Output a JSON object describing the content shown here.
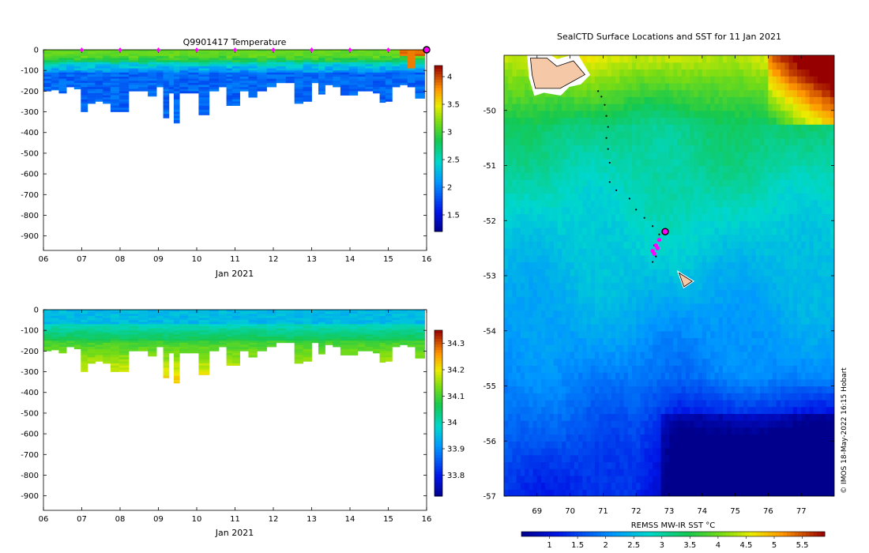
{
  "chart_data": [
    {
      "type": "heatmap",
      "id": "temperature-section",
      "title": "Q9901417  Temperature",
      "xlabel": "Jan 2021",
      "ylabel": "",
      "xlim": [
        6,
        16
      ],
      "ylim": [
        -970,
        0
      ],
      "xticks": [
        6,
        7,
        8,
        9,
        10,
        11,
        12,
        13,
        14,
        15,
        16
      ],
      "xtick_labels": [
        "06",
        "07",
        "08",
        "09",
        "10",
        "11",
        "12",
        "13",
        "14",
        "15",
        "16"
      ],
      "yticks": [
        0,
        -100,
        -200,
        -300,
        -400,
        -500,
        -600,
        -700,
        -800,
        -900
      ],
      "markers": {
        "color": "#ff00ff",
        "x": [
          7,
          8,
          9,
          10,
          11,
          12,
          13,
          14,
          15,
          16
        ]
      },
      "profile_depths": [
        {
          "x": 6.1,
          "depth": -200
        },
        {
          "x": 6.3,
          "depth": -195
        },
        {
          "x": 6.5,
          "depth": -210
        },
        {
          "x": 6.7,
          "depth": -180
        },
        {
          "x": 6.9,
          "depth": -190
        },
        {
          "x": 7.05,
          "depth": -300
        },
        {
          "x": 7.25,
          "depth": -260
        },
        {
          "x": 7.45,
          "depth": -250
        },
        {
          "x": 7.65,
          "depth": -260
        },
        {
          "x": 7.85,
          "depth": -300
        },
        {
          "x": 8.1,
          "depth": -300
        },
        {
          "x": 8.35,
          "depth": -200
        },
        {
          "x": 8.6,
          "depth": -200
        },
        {
          "x": 8.85,
          "depth": -225
        },
        {
          "x": 9.05,
          "depth": -180
        },
        {
          "x": 9.2,
          "depth": -330
        },
        {
          "x": 9.35,
          "depth": -210
        },
        {
          "x": 9.45,
          "depth": -355
        },
        {
          "x": 9.65,
          "depth": -210
        },
        {
          "x": 9.9,
          "depth": -210
        },
        {
          "x": 10.2,
          "depth": -315
        },
        {
          "x": 10.45,
          "depth": -200
        },
        {
          "x": 10.7,
          "depth": -180
        },
        {
          "x": 10.85,
          "depth": -270
        },
        {
          "x": 11.0,
          "depth": -270
        },
        {
          "x": 11.25,
          "depth": -200
        },
        {
          "x": 11.45,
          "depth": -230
        },
        {
          "x": 11.7,
          "depth": -200
        },
        {
          "x": 11.95,
          "depth": -180
        },
        {
          "x": 12.2,
          "depth": -160
        },
        {
          "x": 12.45,
          "depth": -160
        },
        {
          "x": 12.65,
          "depth": -260
        },
        {
          "x": 12.9,
          "depth": -250
        },
        {
          "x": 13.1,
          "depth": -160
        },
        {
          "x": 13.25,
          "depth": -215
        },
        {
          "x": 13.45,
          "depth": -170
        },
        {
          "x": 13.65,
          "depth": -180
        },
        {
          "x": 13.85,
          "depth": -220
        },
        {
          "x": 14.1,
          "depth": -220
        },
        {
          "x": 14.3,
          "depth": -200
        },
        {
          "x": 14.5,
          "depth": -200
        },
        {
          "x": 14.7,
          "depth": -210
        },
        {
          "x": 14.85,
          "depth": -255
        },
        {
          "x": 15.0,
          "depth": -250
        },
        {
          "x": 15.2,
          "depth": -180
        },
        {
          "x": 15.4,
          "depth": -170
        },
        {
          "x": 15.6,
          "depth": -180
        },
        {
          "x": 15.8,
          "depth": -235
        }
      ],
      "colorbar": {
        "range": [
          1.2,
          4.2
        ],
        "ticks": [
          1.5,
          2,
          2.5,
          3,
          3.5,
          4
        ],
        "tick_labels": [
          "1.5",
          "2",
          "2.5",
          "3",
          "3.5",
          "4"
        ]
      }
    },
    {
      "type": "heatmap",
      "id": "salinity-section",
      "title": "",
      "xlabel": "Jan 2021",
      "ylabel": "",
      "xlim": [
        6,
        16
      ],
      "ylim": [
        -970,
        0
      ],
      "xticks": [
        6,
        7,
        8,
        9,
        10,
        11,
        12,
        13,
        14,
        15,
        16
      ],
      "xtick_labels": [
        "06",
        "07",
        "08",
        "09",
        "10",
        "11",
        "12",
        "13",
        "14",
        "15",
        "16"
      ],
      "yticks": [
        0,
        -100,
        -200,
        -300,
        -400,
        -500,
        -600,
        -700,
        -800,
        -900
      ],
      "colorbar": {
        "range": [
          33.72,
          34.35
        ],
        "ticks": [
          33.8,
          33.9,
          34,
          34.1,
          34.2,
          34.3
        ],
        "tick_labels": [
          "33.8",
          "33.9",
          "34",
          "34.1",
          "34.2",
          "34.3"
        ]
      }
    },
    {
      "type": "heatmap",
      "id": "sst-map",
      "title": "SealCTD Surface Locations and SST for 11 Jan 2021",
      "xlabel": "",
      "ylabel": "",
      "xlim": [
        68.0,
        78.0
      ],
      "ylim": [
        -57.0,
        -49.0
      ],
      "xticks": [
        69,
        70,
        71,
        72,
        73,
        74,
        75,
        76,
        77
      ],
      "xtick_labels": [
        "69",
        "70",
        "71",
        "72",
        "73",
        "74",
        "75",
        "76",
        "77"
      ],
      "yticks": [
        -50,
        -51,
        -52,
        -53,
        -54,
        -55,
        -56,
        -57
      ],
      "ytick_labels": [
        "-50",
        "-51",
        "-52",
        "-53",
        "-54",
        "-55",
        "-56",
        "-57"
      ],
      "track": [
        {
          "lon": 70.85,
          "lat": -49.65
        },
        {
          "lon": 70.95,
          "lat": -49.75
        },
        {
          "lon": 71.05,
          "lat": -49.9
        },
        {
          "lon": 71.1,
          "lat": -50.1
        },
        {
          "lon": 71.15,
          "lat": -50.3
        },
        {
          "lon": 71.1,
          "lat": -50.5
        },
        {
          "lon": 71.15,
          "lat": -50.7
        },
        {
          "lon": 71.2,
          "lat": -50.95
        },
        {
          "lon": 71.2,
          "lat": -51.3
        },
        {
          "lon": 71.4,
          "lat": -51.45
        },
        {
          "lon": 71.8,
          "lat": -51.6
        },
        {
          "lon": 72.0,
          "lat": -51.8
        },
        {
          "lon": 72.25,
          "lat": -51.95
        },
        {
          "lon": 72.5,
          "lat": -52.1
        },
        {
          "lon": 72.7,
          "lat": -52.25
        },
        {
          "lon": 72.55,
          "lat": -52.45
        },
        {
          "lon": 72.6,
          "lat": -52.65
        },
        {
          "lon": 72.5,
          "lat": -52.75
        }
      ],
      "recent_positions": [
        {
          "lon": 72.5,
          "lat": -52.55
        },
        {
          "lon": 72.6,
          "lat": -52.45
        },
        {
          "lon": 72.55,
          "lat": -52.6
        },
        {
          "lon": 72.7,
          "lat": -52.35
        },
        {
          "lon": 72.65,
          "lat": -52.5
        }
      ],
      "current_position": {
        "lon": 72.88,
        "lat": -52.2
      },
      "colorbar": {
        "label": "REMSS MW-IR SST °C",
        "range": [
          0.5,
          5.9
        ],
        "ticks": [
          1,
          1.5,
          2,
          2.5,
          3,
          3.5,
          4,
          4.5,
          5,
          5.5
        ],
        "tick_labels": [
          "1",
          "1.5",
          "2",
          "2.5",
          "3",
          "3.5",
          "4",
          "4.5",
          "5",
          "5.5"
        ]
      }
    }
  ],
  "credit": "© IMOS 18-May-2022 16:15 Hobart",
  "colors": {
    "marker": "#ff00ff",
    "land": "#f5c9a8",
    "axis": "#000000"
  }
}
